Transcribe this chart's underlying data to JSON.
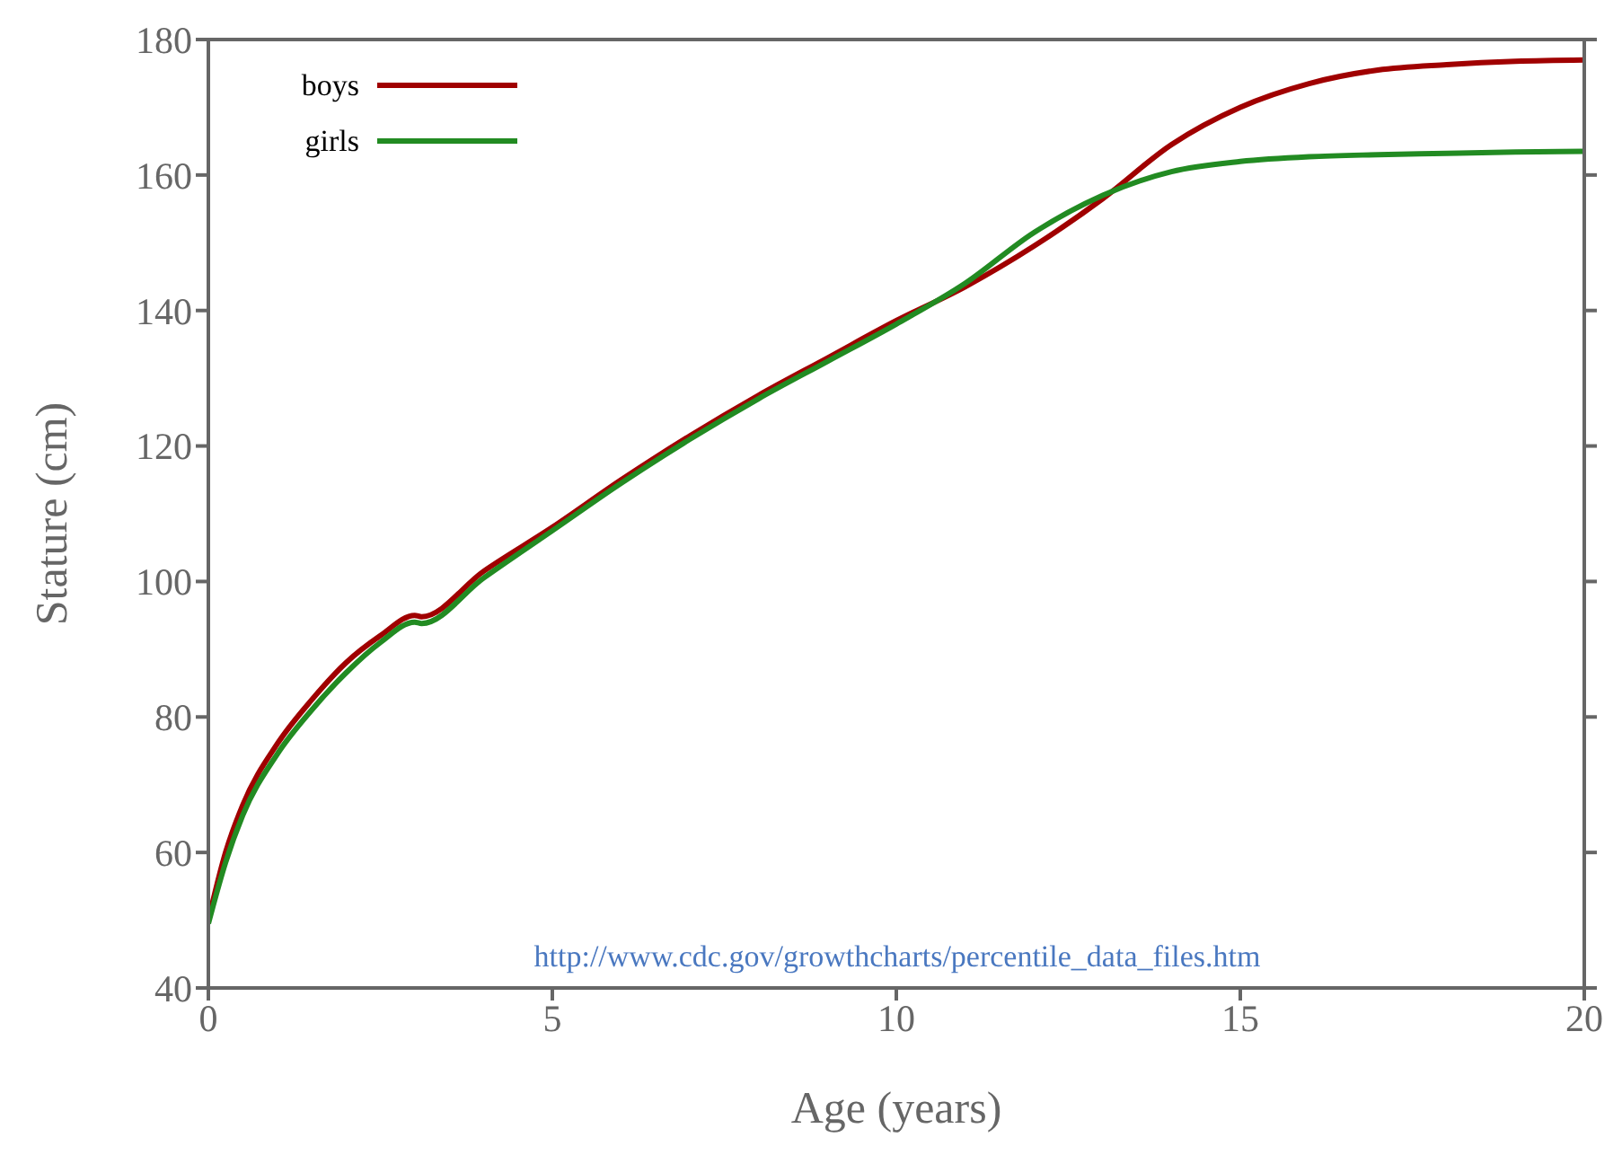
{
  "chart_data": {
    "type": "line",
    "xlabel": "Age (years)",
    "ylabel": "Stature (cm)",
    "xlim": [
      0,
      20
    ],
    "xticks": [
      0,
      5,
      10,
      15,
      20
    ],
    "ylim": [
      40,
      180
    ],
    "yticks": [
      40,
      60,
      80,
      100,
      120,
      140,
      160,
      180
    ],
    "grid": false,
    "legend": "top left",
    "marker": "none",
    "line_style": "solid",
    "annotations": [
      "http://www.cdc.gov/growthcharts/percentile_data_files.htm"
    ],
    "series": [
      {
        "name": "boys",
        "color": "#a00000",
        "x": [
          0,
          0.25,
          0.5,
          1,
          1.5,
          2,
          2.5,
          3,
          3.1,
          4,
          5,
          6,
          7,
          8,
          9,
          10,
          11,
          12,
          13,
          14,
          15,
          16,
          17,
          18,
          19,
          20
        ],
        "values": [
          50,
          60,
          67,
          76,
          82.5,
          88,
          92,
          95,
          94.8,
          101.5,
          108,
          115,
          121.5,
          127.5,
          133,
          138.5,
          143.5,
          149.5,
          156.5,
          164.5,
          170,
          173.5,
          175.5,
          176.3,
          176.8,
          177
        ]
      },
      {
        "name": "girls",
        "color": "#228b22",
        "x": [
          0,
          0.25,
          0.5,
          1,
          1.5,
          2,
          2.5,
          3,
          3.1,
          4,
          5,
          6,
          7,
          8,
          9,
          10,
          11,
          12,
          13,
          14,
          15,
          16,
          17,
          18,
          19,
          20
        ],
        "values": [
          49.5,
          58.5,
          65.5,
          74.5,
          81,
          86.5,
          91,
          94,
          93.8,
          100.5,
          107.5,
          114.5,
          121,
          127,
          132.5,
          138,
          144,
          151.5,
          157,
          160.5,
          162,
          162.7,
          163,
          163.2,
          163.4,
          163.5
        ]
      }
    ]
  }
}
